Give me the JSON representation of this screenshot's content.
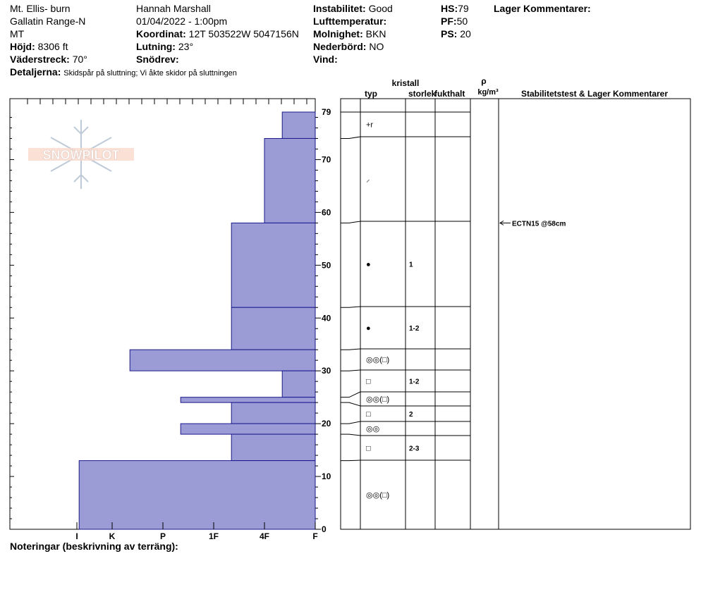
{
  "header": {
    "location": "Mt. Ellis- burn",
    "range": "Gallatin Range-N",
    "state": "MT",
    "elevation_label": "Höjd:",
    "elevation_value": "8306 ft",
    "aspect_label": "Väderstreck:",
    "aspect_value": "70°",
    "observer": "Hannah Marshall",
    "datetime": "01/04/2022 - 1:00pm",
    "coord_label": "Koordinat:",
    "coord_value": "12T 503522W 5047156N",
    "slope_label": "Lutning:",
    "slope_value": "23°",
    "drift_label": "Snödrev:",
    "drift_value": "",
    "instability_label": "Instabilitet:",
    "instability_value": "Good",
    "airtemp_label": "Lufttemperatur:",
    "airtemp_value": "",
    "sky_label": "Molnighet:",
    "sky_value": "BKN",
    "precip_label": "Nederbörd:",
    "precip_value": "NO",
    "wind_label": "Vind:",
    "wind_value": "",
    "hs_label": "HS:",
    "hs_value": "79",
    "pf_label": "PF:",
    "pf_value": "50",
    "ps_label": "PS:",
    "ps_value": "20",
    "layer_comments_label": "Lager Kommentarer:",
    "details_label": "Detaljerna:",
    "details_value": "Skidspår på sluttning;  Vi åkte skidor på sluttningen"
  },
  "watermark": "SNOWPILOT",
  "footer": {
    "notes_label": "Noteringar (beskrivning av terräng):"
  },
  "colors": {
    "hardness_fill": "#9b9bd6",
    "hardness_stroke": "#1a1a8c"
  },
  "chart_data": {
    "type": "bar",
    "title": "",
    "xlabel": "",
    "ylabel": "",
    "ylim": [
      0,
      81
    ],
    "ticks_y": [
      0,
      10,
      20,
      30,
      40,
      50,
      60,
      70,
      79
    ],
    "hardness_scale": [
      "I",
      "K",
      "P",
      "1F",
      "4F",
      "F"
    ],
    "hardness_ticks_value": [
      5,
      4,
      3,
      2,
      1,
      0
    ],
    "column_headers": {
      "crystal": "kristall",
      "type": "typ",
      "size": "storlek",
      "moisture": "fukthalt",
      "rho": "ρ",
      "density_unit": "kg/m³",
      "stability": "Stabilitetstest & Lager Kommentarer"
    },
    "layers": [
      {
        "top": 79,
        "bottom": 74,
        "hardness": 0.65,
        "symbol": "+r",
        "size": ""
      },
      {
        "top": 74,
        "bottom": 58,
        "hardness": 1.0,
        "symbol": "⸝",
        "size": ""
      },
      {
        "top": 58,
        "bottom": 42,
        "hardness": 1.65,
        "symbol": "●",
        "size": "1"
      },
      {
        "top": 42,
        "bottom": 34,
        "hardness": 1.65,
        "symbol": "●",
        "size": "1-2"
      },
      {
        "top": 34,
        "bottom": 30,
        "hardness": 3.65,
        "symbol": "◎◎(□)",
        "size": ""
      },
      {
        "top": 30,
        "bottom": 25,
        "hardness": 0.65,
        "symbol": "□",
        "size": "1-2"
      },
      {
        "top": 25,
        "bottom": 24,
        "hardness": 2.65,
        "symbol": "◎◎(□)",
        "size": ""
      },
      {
        "top": 24,
        "bottom": 20,
        "hardness": 1.65,
        "symbol": "□",
        "size": "2"
      },
      {
        "top": 20,
        "bottom": 18,
        "hardness": 2.65,
        "symbol": "◎◎",
        "size": ""
      },
      {
        "top": 18,
        "bottom": 13,
        "hardness": 1.65,
        "symbol": "□",
        "size": "2-3"
      },
      {
        "top": 13,
        "bottom": 0,
        "hardness": 4.65,
        "symbol": "◎◎(□)",
        "size": ""
      }
    ],
    "stability_tests": [
      {
        "depth": 58,
        "label": "ECTN15 @58cm"
      }
    ]
  }
}
